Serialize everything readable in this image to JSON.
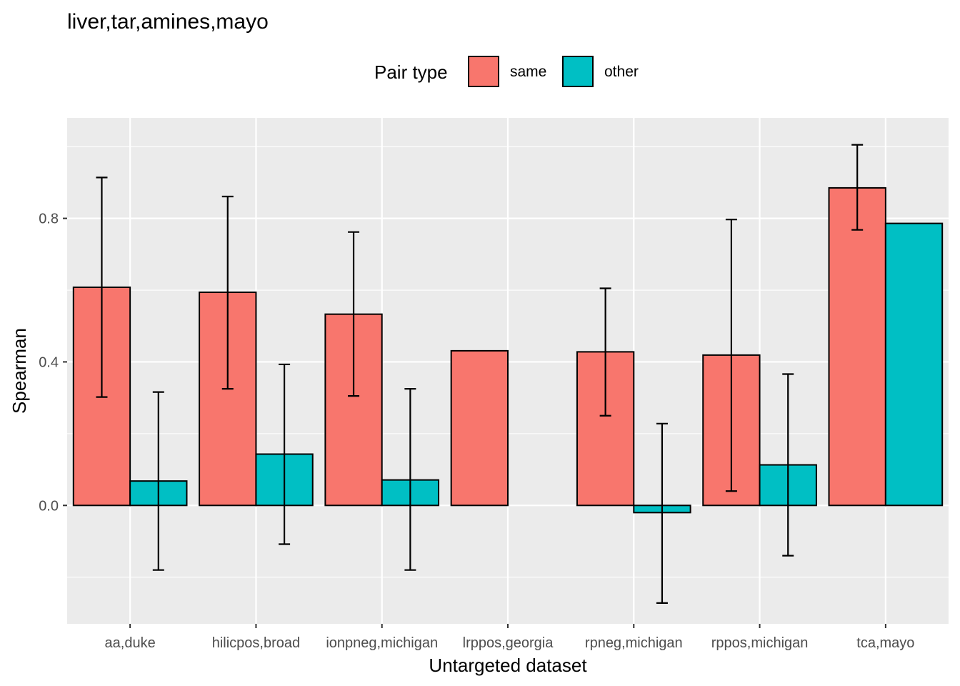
{
  "chart_data": {
    "type": "bar",
    "title": "liver,tar,amines,mayo",
    "xlabel": "Untargeted dataset",
    "ylabel": "Spearman",
    "ylim": [
      -0.33,
      1.08
    ],
    "yticks": [
      0.0,
      0.4,
      0.8
    ],
    "ytick_labels": [
      "0.0",
      "0.4",
      "0.8"
    ],
    "grid": true,
    "legend": {
      "title": "Pair type",
      "placement": "top"
    },
    "categories": [
      "aa,duke",
      "hilicpos,broad",
      "ionpneg,michigan",
      "lrppos,georgia",
      "rpneg,michigan",
      "rppos,michigan",
      "tca,mayo"
    ],
    "series": [
      {
        "name": "same",
        "color": "#F8766D",
        "values": [
          0.608,
          0.594,
          0.533,
          0.431,
          0.428,
          0.419,
          0.885
        ],
        "error_low": [
          0.302,
          0.325,
          0.305,
          null,
          0.25,
          0.04,
          0.768
        ],
        "error_high": [
          0.914,
          0.861,
          0.762,
          null,
          0.605,
          0.797,
          1.005
        ]
      },
      {
        "name": "other",
        "color": "#00BFC4",
        "values": [
          0.068,
          0.143,
          0.071,
          null,
          -0.02,
          0.113,
          0.786
        ],
        "error_low": [
          -0.18,
          -0.108,
          -0.18,
          null,
          -0.272,
          -0.14,
          null
        ],
        "error_high": [
          0.316,
          0.393,
          0.325,
          null,
          0.228,
          0.366,
          null
        ]
      }
    ]
  }
}
